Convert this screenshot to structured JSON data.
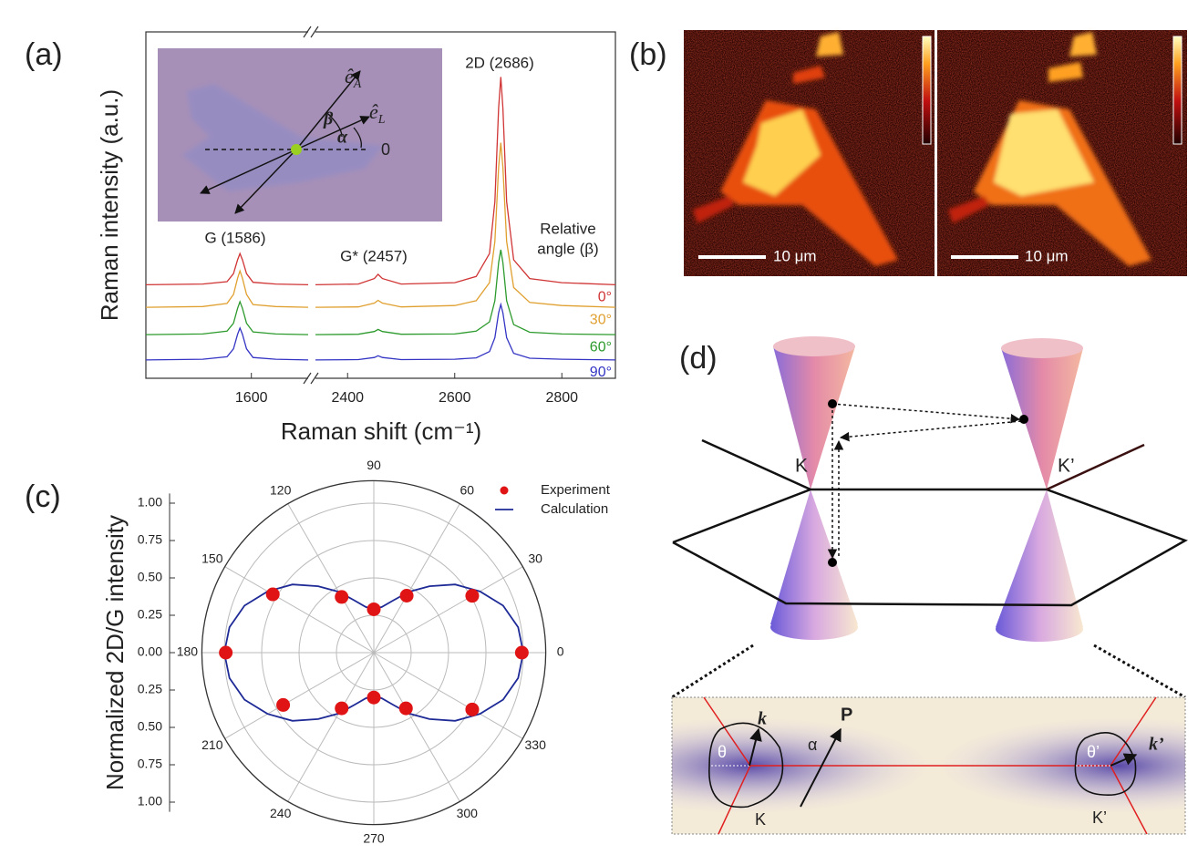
{
  "panel_labels": [
    "(a)",
    "(b)",
    "(c)",
    "(d)"
  ],
  "chart_data": [
    {
      "type": "line",
      "xlabel": "Raman shift (cm⁻¹)",
      "ylabel": "Raman intensity (a.u.)",
      "xlim": [
        [
          1470,
          1670
        ],
        [
          2340,
          2900
        ]
      ],
      "ylim": [
        0,
        10
      ],
      "xticks": [
        1600,
        2400,
        2600,
        2800
      ],
      "annotations": [
        "G (1586)",
        "G* (2457)",
        "2D (2686)",
        "Relative",
        "angle (β)"
      ],
      "x": [
        1470,
        1540,
        1570,
        1578,
        1583,
        1586,
        1589,
        1594,
        1602,
        1630,
        1670,
        2340,
        2420,
        2450,
        2457,
        2465,
        2500,
        2600,
        2640,
        2665,
        2675,
        2682,
        2686,
        2690,
        2697,
        2710,
        2740,
        2800,
        2900
      ],
      "series": [
        {
          "name": "0°",
          "color": "#d03434",
          "values": [
            2.7,
            2.72,
            2.79,
            3.02,
            3.42,
            3.6,
            3.42,
            3.02,
            2.77,
            2.72,
            2.7,
            2.7,
            2.72,
            2.88,
            3.0,
            2.88,
            2.72,
            2.76,
            2.94,
            3.6,
            5.1,
            7.8,
            8.7,
            7.8,
            5.1,
            3.42,
            2.88,
            2.76,
            2.7
          ]
        },
        {
          "name": "30°",
          "color": "#e0a030",
          "values": [
            2.05,
            2.07,
            2.16,
            2.42,
            2.89,
            3.1,
            2.89,
            2.42,
            2.13,
            2.07,
            2.05,
            2.05,
            2.06,
            2.17,
            2.25,
            2.17,
            2.06,
            2.1,
            2.24,
            2.76,
            3.95,
            6.09,
            6.8,
            6.09,
            3.95,
            2.62,
            2.19,
            2.1,
            2.05
          ]
        },
        {
          "name": "60°",
          "color": "#2c9a2c",
          "values": [
            1.26,
            1.28,
            1.36,
            1.59,
            2.02,
            2.21,
            2.02,
            1.59,
            1.34,
            1.28,
            1.26,
            1.26,
            1.27,
            1.35,
            1.41,
            1.35,
            1.27,
            1.28,
            1.36,
            1.63,
            2.24,
            3.34,
            3.71,
            3.34,
            2.24,
            1.55,
            1.33,
            1.28,
            1.26
          ]
        },
        {
          "name": "90°",
          "color": "#3434c4",
          "values": [
            0.53,
            0.55,
            0.62,
            0.85,
            1.27,
            1.45,
            1.27,
            0.85,
            0.6,
            0.55,
            0.53,
            0.53,
            0.54,
            0.6,
            0.65,
            0.6,
            0.54,
            0.55,
            0.59,
            0.77,
            1.17,
            1.89,
            2.13,
            1.89,
            1.17,
            0.72,
            0.58,
            0.55,
            0.53
          ]
        }
      ]
    },
    {
      "type": "polar",
      "ylabel": "Normalized 2D/G intensity",
      "rlim": [
        0,
        1.15
      ],
      "yticks": [
        {
          "value": 1,
          "label": "1.00"
        },
        {
          "value": 0.75,
          "label": "0.75"
        },
        {
          "value": 0.5,
          "label": "0.50"
        },
        {
          "value": 0.25,
          "label": "0.25"
        },
        {
          "value": 0,
          "label": "0.00"
        },
        {
          "value": -0.25,
          "label": "0.25"
        },
        {
          "value": -0.5,
          "label": "0.50"
        },
        {
          "value": -0.75,
          "label": "0.75"
        },
        {
          "value": -1,
          "label": "1.00"
        }
      ],
      "thetaticks": [
        0,
        30,
        60,
        90,
        120,
        150,
        180,
        210,
        240,
        270,
        300,
        330
      ],
      "grid": true,
      "series": [
        {
          "name": "Experiment",
          "color": "#e01414",
          "marker": "circle",
          "theta": [
            0,
            30,
            60,
            90,
            120,
            150,
            180,
            210,
            240,
            270,
            300,
            330
          ],
          "values": [
            0.99,
            0.76,
            0.44,
            0.29,
            0.43,
            0.78,
            0.99,
            0.7,
            0.43,
            0.3,
            0.43,
            0.76
          ]
        },
        {
          "name": "Calculation",
          "color": "#1e2a96",
          "marker": "line",
          "theta": [
            0,
            10,
            20,
            30,
            40,
            50,
            60,
            70,
            80,
            90,
            100,
            110,
            120,
            130,
            140,
            150,
            160,
            170,
            180,
            190,
            200,
            210,
            220,
            230,
            240,
            250,
            260,
            270,
            280,
            290,
            300,
            310,
            320,
            330,
            340,
            350,
            360
          ],
          "values": [
            1.0,
            0.98,
            0.92,
            0.82,
            0.71,
            0.58,
            0.47,
            0.37,
            0.31,
            0.29,
            0.31,
            0.37,
            0.47,
            0.58,
            0.71,
            0.82,
            0.92,
            0.98,
            1.0,
            0.98,
            0.92,
            0.82,
            0.71,
            0.58,
            0.47,
            0.37,
            0.31,
            0.29,
            0.31,
            0.37,
            0.47,
            0.58,
            0.71,
            0.82,
            0.92,
            0.98,
            1.0
          ]
        }
      ]
    }
  ],
  "inset_a": {
    "vectors": [
      {
        "symbol": "ê",
        "subscript": "A"
      },
      {
        "symbol": "ê",
        "subscript": "L"
      }
    ],
    "angles": [
      "β",
      "α"
    ],
    "zero": "0"
  },
  "panel_b": {
    "scale_labels": [
      "10 μm",
      "10 μm"
    ]
  },
  "panel_d": {
    "cone_labels": [
      "K",
      "K’"
    ],
    "inset": {
      "k": "k",
      "P": "P",
      "alpha": "α",
      "theta": "θ",
      "theta_prime": "θ’",
      "k_prime": "k’",
      "K": "K",
      "K_prime": "K’"
    }
  }
}
